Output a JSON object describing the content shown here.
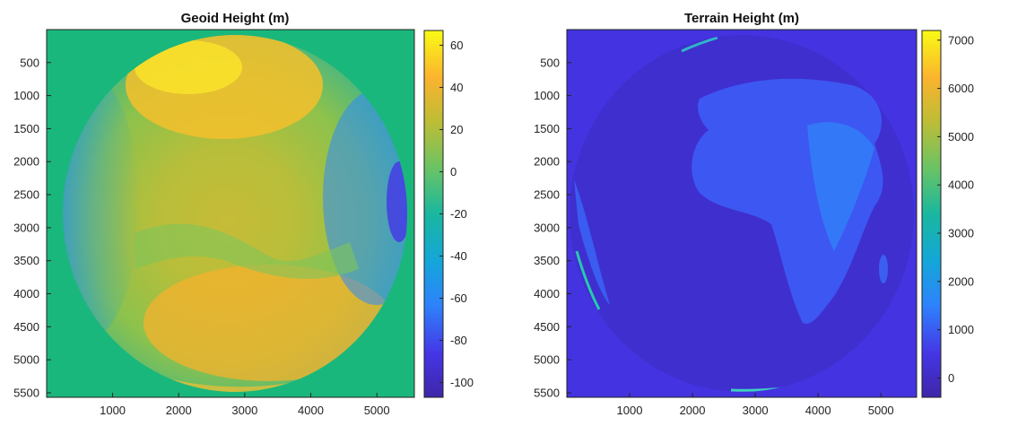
{
  "chart_data": [
    {
      "type": "heatmap",
      "title": "Geoid Height (m)",
      "xlabel": "",
      "ylabel": "",
      "x_ticks": [
        1000,
        2000,
        3000,
        4000,
        5000
      ],
      "y_ticks": [
        500,
        1000,
        1500,
        2000,
        2500,
        3000,
        3500,
        4000,
        4500,
        5000,
        5500
      ],
      "xlim": [
        1,
        5568
      ],
      "ylim": [
        1,
        5568
      ],
      "y_reversed": true,
      "colormap": "parula",
      "colorbar": {
        "range": [
          -107,
          67
        ],
        "ticks": [
          60,
          40,
          20,
          0,
          -20,
          -40,
          -60,
          -80,
          -100
        ],
        "labels": [
          "60",
          "40",
          "20",
          "0",
          "-20",
          "-40",
          "-60",
          "-80",
          "-100"
        ]
      },
      "background_value": 0
    },
    {
      "type": "heatmap",
      "title": "Terrain Height (m)",
      "xlabel": "",
      "ylabel": "",
      "x_ticks": [
        1000,
        2000,
        3000,
        4000,
        5000
      ],
      "y_ticks": [
        500,
        1000,
        1500,
        2000,
        2500,
        3000,
        3500,
        4000,
        4500,
        5000,
        5500
      ],
      "xlim": [
        1,
        5568
      ],
      "ylim": [
        1,
        5568
      ],
      "y_reversed": true,
      "colormap": "parula",
      "colorbar": {
        "range": [
          -400,
          7200
        ],
        "ticks": [
          7000,
          6000,
          5000,
          4000,
          3000,
          2000,
          1000,
          0
        ],
        "labels": [
          "7000",
          "6000",
          "5000",
          "4000",
          "3000",
          "2000",
          "1000",
          "0"
        ]
      },
      "background_value": 0
    }
  ]
}
